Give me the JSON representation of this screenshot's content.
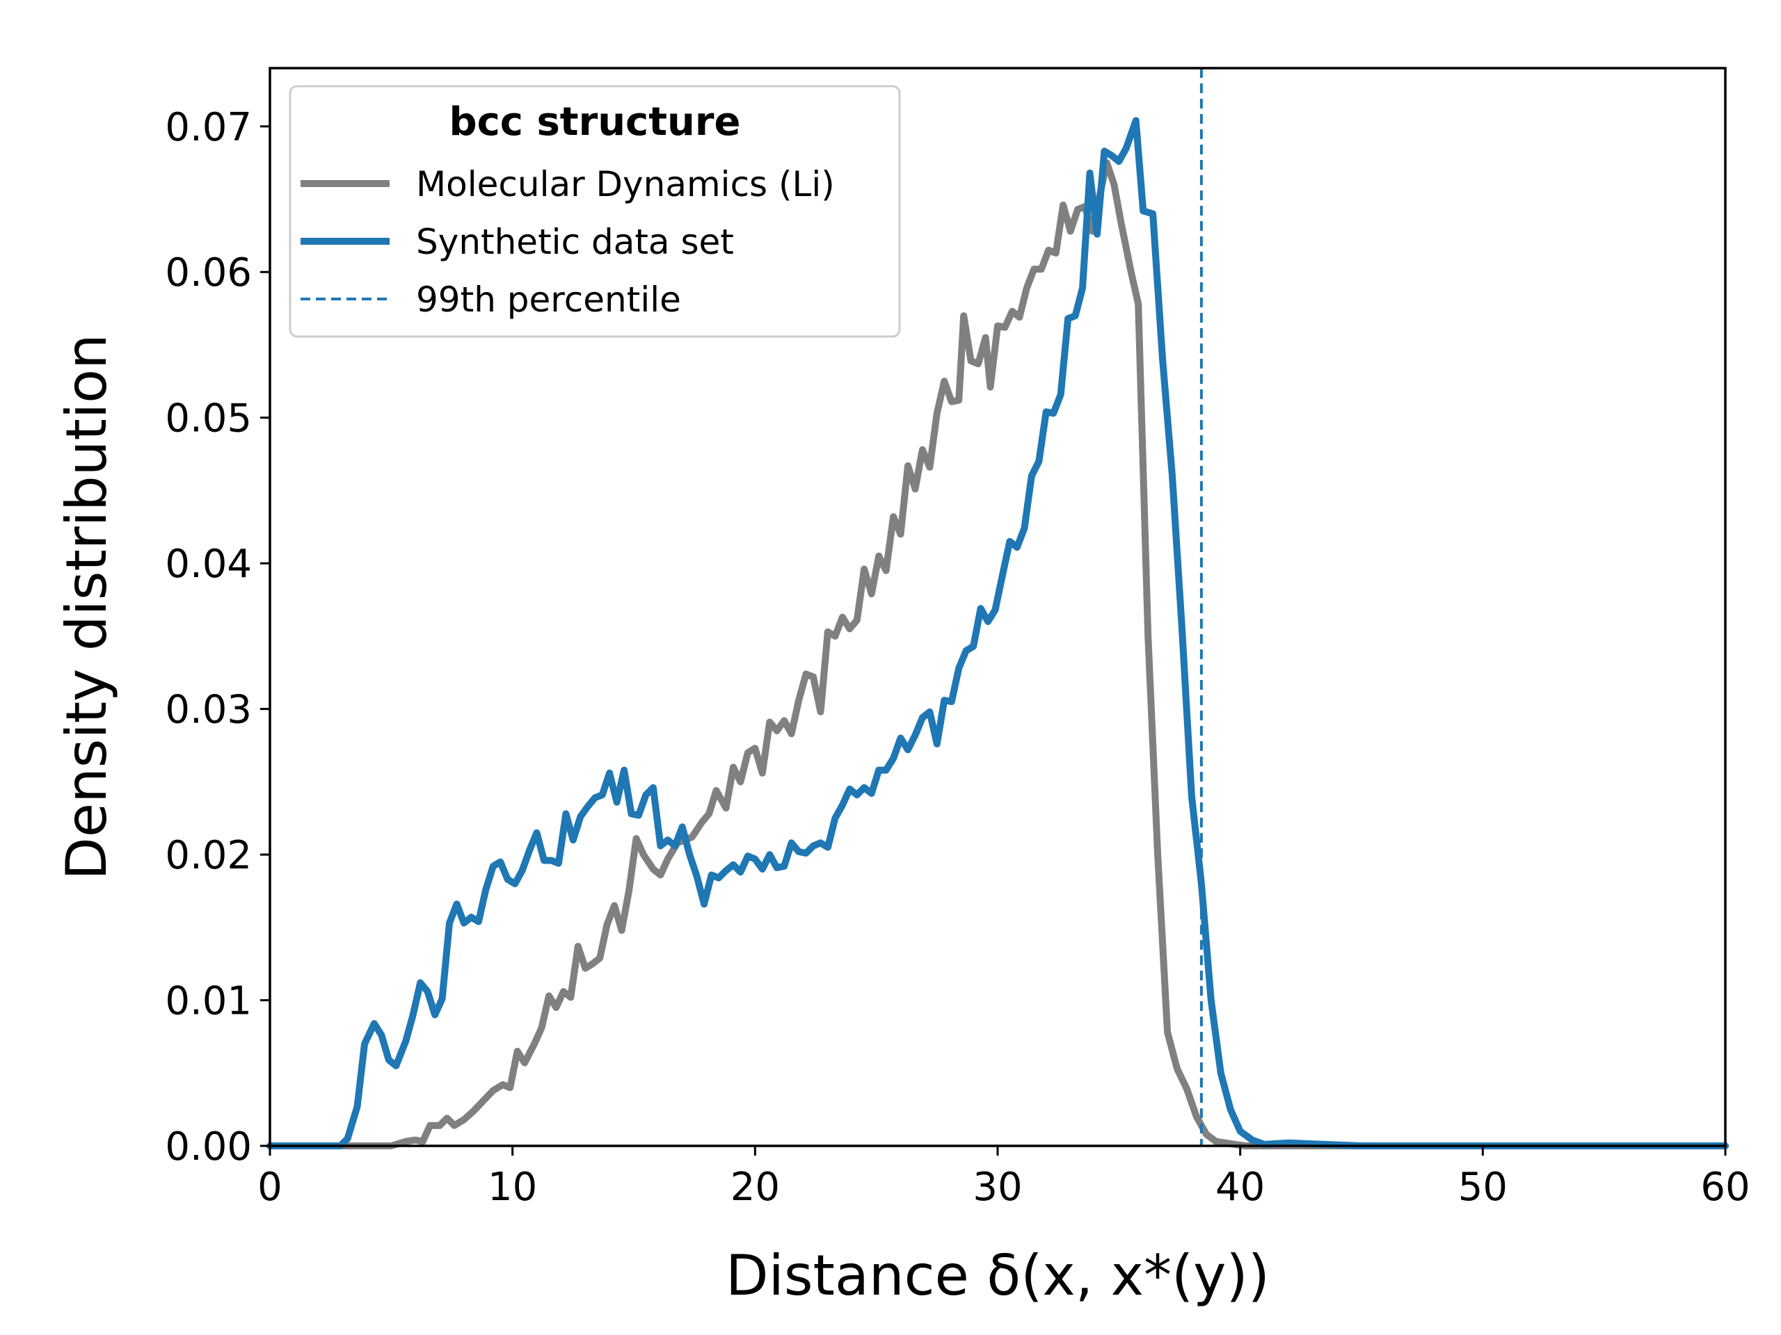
{
  "chart_data": {
    "type": "line",
    "title": "",
    "xlabel": "Distance δ(x, x*(y))",
    "ylabel": "Density distribution",
    "xlim": [
      0,
      60
    ],
    "ylim": [
      0,
      0.074
    ],
    "xticks": [
      0,
      10,
      20,
      30,
      40,
      50,
      60
    ],
    "xtick_labels": [
      "0",
      "10",
      "20",
      "30",
      "40",
      "50",
      "60"
    ],
    "yticks": [
      0,
      0.01,
      0.02,
      0.03,
      0.04,
      0.05,
      0.06,
      0.07
    ],
    "ytick_labels": [
      "0.00",
      "0.01",
      "0.02",
      "0.03",
      "0.04",
      "0.05",
      "0.06",
      "0.07"
    ],
    "grid": false,
    "legend": {
      "title": "bcc structure",
      "placement": "top-left",
      "entries": [
        "Molecular Dynamics (Li)",
        "Synthetic data set",
        "99th percentile"
      ]
    },
    "colors": {
      "md": "#808080",
      "synthetic": "#1f77b4",
      "percentile": "#1f77b4"
    },
    "series": [
      {
        "name": "Molecular Dynamics (Li)",
        "x": [
          0,
          3,
          4,
          5,
          5.6,
          6,
          6.3,
          6.6,
          7.0,
          7.3,
          7.6,
          8.0,
          8.4,
          8.8,
          9.2,
          9.6,
          9.9,
          10.2,
          10.5,
          10.9,
          11.2,
          11.5,
          11.8,
          12.1,
          12.4,
          12.7,
          13.0,
          13.3,
          13.6,
          13.9,
          14.2,
          14.5,
          14.8,
          15.1,
          15.4,
          15.8,
          16.1,
          16.4,
          16.8,
          17.1,
          17.4,
          17.8,
          18.1,
          18.4,
          18.8,
          19.1,
          19.4,
          19.7,
          20.0,
          20.3,
          20.6,
          20.9,
          21.2,
          21.5,
          21.8,
          22.1,
          22.4,
          22.7,
          23.0,
          23.3,
          23.6,
          23.9,
          24.2,
          24.5,
          24.8,
          25.1,
          25.4,
          25.7,
          26.0,
          26.3,
          26.6,
          26.9,
          27.2,
          27.5,
          27.8,
          28.1,
          28.4,
          28.6,
          28.9,
          29.2,
          29.5,
          29.7,
          30.0,
          30.3,
          30.6,
          30.9,
          31.2,
          31.5,
          31.8,
          32.1,
          32.4,
          32.7,
          33.0,
          33.3,
          33.6,
          33.9,
          34.2,
          34.5,
          34.8,
          35.1,
          35.5,
          35.8,
          36.2,
          36.6,
          37.0,
          37.4,
          37.8,
          38.2,
          38.6,
          39.0,
          39.4,
          39.8,
          40.2,
          41,
          45,
          50,
          60
        ],
        "y": [
          0,
          0,
          0,
          0,
          0.0003,
          0.0004,
          0.0003,
          0.0014,
          0.0014,
          0.0019,
          0.0014,
          0.0018,
          0.0024,
          0.0031,
          0.0038,
          0.0042,
          0.004,
          0.0065,
          0.0057,
          0.007,
          0.0081,
          0.0103,
          0.0095,
          0.0106,
          0.0102,
          0.0137,
          0.0122,
          0.0125,
          0.0129,
          0.0152,
          0.0165,
          0.0148,
          0.0175,
          0.0211,
          0.02,
          0.019,
          0.0186,
          0.0197,
          0.0208,
          0.021,
          0.0212,
          0.0222,
          0.0228,
          0.0244,
          0.0232,
          0.026,
          0.025,
          0.027,
          0.0273,
          0.0256,
          0.0291,
          0.0285,
          0.0292,
          0.0283,
          0.0306,
          0.0324,
          0.0322,
          0.0298,
          0.0353,
          0.035,
          0.0363,
          0.0355,
          0.0361,
          0.0396,
          0.0379,
          0.0405,
          0.0395,
          0.0432,
          0.042,
          0.0467,
          0.0451,
          0.0478,
          0.0466,
          0.0503,
          0.0525,
          0.0511,
          0.0512,
          0.057,
          0.0539,
          0.0537,
          0.0555,
          0.0521,
          0.0563,
          0.0562,
          0.0573,
          0.0569,
          0.0589,
          0.0602,
          0.0602,
          0.0615,
          0.0613,
          0.0646,
          0.0628,
          0.0643,
          0.0645,
          0.0628,
          0.0652,
          0.0675,
          0.066,
          0.0633,
          0.06,
          0.0578,
          0.035,
          0.02,
          0.0078,
          0.0053,
          0.0039,
          0.002,
          0.0008,
          0.0003,
          0.0002,
          0.0001,
          0,
          0,
          0,
          0,
          0
        ]
      },
      {
        "name": "Synthetic data set",
        "x": [
          0,
          2.9,
          3.2,
          3.6,
          3.9,
          4.3,
          4.6,
          4.9,
          5.2,
          5.6,
          5.9,
          6.2,
          6.5,
          6.8,
          7.1,
          7.4,
          7.7,
          8.0,
          8.3,
          8.6,
          8.9,
          9.2,
          9.5,
          9.8,
          10.1,
          10.4,
          10.7,
          11.0,
          11.3,
          11.6,
          11.9,
          12.2,
          12.5,
          12.8,
          13.1,
          13.4,
          13.7,
          14.0,
          14.3,
          14.6,
          14.9,
          15.2,
          15.5,
          15.8,
          16.1,
          16.4,
          16.7,
          17.0,
          17.3,
          17.6,
          17.9,
          18.2,
          18.5,
          18.8,
          19.1,
          19.4,
          19.7,
          20.0,
          20.3,
          20.6,
          20.9,
          21.2,
          21.5,
          21.8,
          22.1,
          22.4,
          22.7,
          23.0,
          23.3,
          23.6,
          23.9,
          24.2,
          24.5,
          24.8,
          25.1,
          25.4,
          25.7,
          26.0,
          26.3,
          26.6,
          26.9,
          27.2,
          27.5,
          27.8,
          28.1,
          28.4,
          28.7,
          29.0,
          29.3,
          29.6,
          29.9,
          30.2,
          30.5,
          30.8,
          31.1,
          31.4,
          31.7,
          32.0,
          32.3,
          32.6,
          32.9,
          33.2,
          33.5,
          33.8,
          34.1,
          34.4,
          34.7,
          35.0,
          35.3,
          35.7,
          36.0,
          36.4,
          36.8,
          37.2,
          37.6,
          38.0,
          38.4,
          38.8,
          39.2,
          39.6,
          40.0,
          40.5,
          41,
          42,
          45,
          50,
          60
        ],
        "y": [
          0,
          0,
          0.0005,
          0.0027,
          0.007,
          0.0084,
          0.0076,
          0.0059,
          0.0055,
          0.0072,
          0.009,
          0.0112,
          0.0106,
          0.009,
          0.0101,
          0.0153,
          0.0166,
          0.0153,
          0.0157,
          0.0154,
          0.0176,
          0.0192,
          0.0195,
          0.0183,
          0.018,
          0.0189,
          0.0203,
          0.0215,
          0.0196,
          0.0196,
          0.0194,
          0.0228,
          0.021,
          0.0226,
          0.0233,
          0.0239,
          0.0241,
          0.0256,
          0.0236,
          0.0258,
          0.0228,
          0.0227,
          0.0241,
          0.0246,
          0.0206,
          0.021,
          0.0206,
          0.0219,
          0.02,
          0.0185,
          0.0166,
          0.0186,
          0.0184,
          0.0189,
          0.0193,
          0.0188,
          0.0199,
          0.0197,
          0.019,
          0.02,
          0.0191,
          0.0192,
          0.0208,
          0.0202,
          0.0201,
          0.0206,
          0.0208,
          0.0205,
          0.0225,
          0.0234,
          0.0245,
          0.0241,
          0.0246,
          0.0242,
          0.0258,
          0.0258,
          0.0266,
          0.028,
          0.0272,
          0.0282,
          0.0294,
          0.0298,
          0.0276,
          0.0306,
          0.0305,
          0.0328,
          0.034,
          0.0343,
          0.0369,
          0.036,
          0.0368,
          0.0392,
          0.0415,
          0.0411,
          0.0424,
          0.046,
          0.047,
          0.0504,
          0.0503,
          0.0516,
          0.0568,
          0.057,
          0.0589,
          0.0668,
          0.0626,
          0.0683,
          0.068,
          0.0676,
          0.0685,
          0.0704,
          0.0642,
          0.064,
          0.054,
          0.046,
          0.0355,
          0.024,
          0.018,
          0.01,
          0.005,
          0.0025,
          0.001,
          0.0004,
          0.0001,
          0.0002,
          0,
          0,
          0
        ]
      }
    ],
    "vlines": [
      {
        "name": "99th percentile",
        "x": 38.4
      }
    ]
  }
}
